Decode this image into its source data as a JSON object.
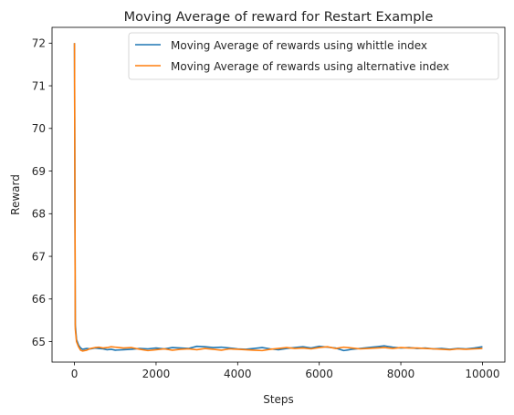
{
  "chart_data": {
    "type": "line",
    "title": "Moving Average of reward for Restart Example",
    "xlabel": "Steps",
    "ylabel": "Reward",
    "xlim": [
      -550,
      10550
    ],
    "ylim": [
      64.52,
      72.37
    ],
    "xticks": [
      0,
      2000,
      4000,
      6000,
      8000,
      10000
    ],
    "xtick_labels": [
      "0",
      "2000",
      "4000",
      "6000",
      "8000",
      "10000"
    ],
    "yticks": [
      65,
      66,
      67,
      68,
      69,
      70,
      71,
      72
    ],
    "ytick_labels": [
      "65",
      "66",
      "67",
      "68",
      "69",
      "70",
      "71",
      "72"
    ],
    "grid": false,
    "legend_position": "top-right",
    "series": [
      {
        "name": "Moving Average of rewards using whittle index",
        "color": "#1f77b4",
        "x": [
          0,
          20,
          50,
          100,
          150,
          200,
          300,
          400,
          500,
          600,
          700,
          800,
          900,
          1000,
          1200,
          1400,
          1600,
          1800,
          2000,
          2200,
          2400,
          2600,
          2800,
          3000,
          3200,
          3400,
          3600,
          3800,
          4000,
          4200,
          4400,
          4600,
          4800,
          5000,
          5200,
          5400,
          5600,
          5800,
          6000,
          6200,
          6400,
          6600,
          6800,
          7000,
          7200,
          7400,
          7600,
          7800,
          8000,
          8200,
          8400,
          8600,
          8800,
          9000,
          9200,
          9400,
          9600,
          9800,
          10000
        ],
        "y": [
          72.0,
          65.4,
          65.05,
          64.92,
          64.85,
          64.82,
          64.84,
          64.83,
          64.85,
          64.84,
          64.83,
          64.81,
          64.82,
          64.8,
          64.81,
          64.82,
          64.84,
          64.83,
          64.85,
          64.83,
          64.86,
          64.85,
          64.84,
          64.89,
          64.88,
          64.86,
          64.87,
          64.85,
          64.83,
          64.82,
          64.84,
          64.86,
          64.83,
          64.81,
          64.84,
          64.86,
          64.88,
          64.85,
          64.89,
          64.87,
          64.85,
          64.79,
          64.82,
          64.84,
          64.86,
          64.88,
          64.9,
          64.87,
          64.85,
          64.86,
          64.84,
          64.85,
          64.83,
          64.84,
          64.82,
          64.84,
          64.83,
          64.85,
          64.88
        ]
      },
      {
        "name": "Moving Average of rewards using alternative index",
        "color": "#ff7f0e",
        "x": [
          0,
          20,
          50,
          100,
          150,
          200,
          300,
          400,
          500,
          600,
          700,
          800,
          900,
          1000,
          1200,
          1400,
          1600,
          1800,
          2000,
          2200,
          2400,
          2600,
          2800,
          3000,
          3200,
          3400,
          3600,
          3800,
          4000,
          4200,
          4400,
          4600,
          4800,
          5000,
          5200,
          5400,
          5600,
          5800,
          6000,
          6200,
          6400,
          6600,
          6800,
          7000,
          7200,
          7400,
          7600,
          7800,
          8000,
          8200,
          8400,
          8600,
          8800,
          9000,
          9200,
          9400,
          9600,
          9800,
          10000
        ],
        "y": [
          72.0,
          65.3,
          65.0,
          64.88,
          64.8,
          64.78,
          64.8,
          64.84,
          64.86,
          64.87,
          64.85,
          64.86,
          64.88,
          64.87,
          64.85,
          64.86,
          64.82,
          64.79,
          64.81,
          64.83,
          64.8,
          64.82,
          64.83,
          64.81,
          64.84,
          64.82,
          64.8,
          64.83,
          64.82,
          64.81,
          64.8,
          64.79,
          64.82,
          64.84,
          64.86,
          64.84,
          64.85,
          64.83,
          64.86,
          64.88,
          64.84,
          64.87,
          64.85,
          64.83,
          64.84,
          64.85,
          64.86,
          64.84,
          64.86,
          64.85,
          64.85,
          64.84,
          64.83,
          64.82,
          64.81,
          64.83,
          64.82,
          64.83,
          64.84
        ]
      }
    ]
  }
}
